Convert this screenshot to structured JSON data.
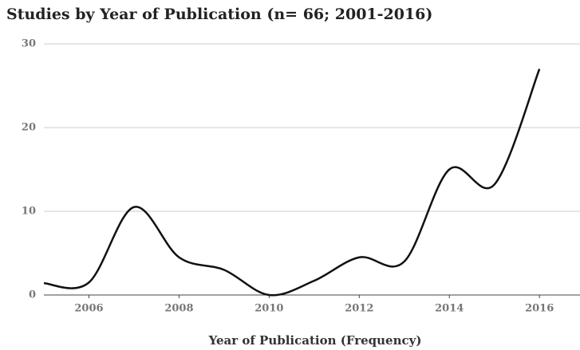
{
  "chart_data": {
    "type": "line",
    "title": "Studies by Year of Publication (n= 66; 2001-2016)",
    "x_label": "Year of Publication (Frequency)",
    "x": [
      2005,
      2006,
      2007,
      2008,
      2009,
      2010,
      2011,
      2012,
      2013,
      2014,
      2015,
      2016
    ],
    "series": [
      {
        "name": "Studies",
        "color": "#111111",
        "values": [
          1.4,
          1.5,
          10.5,
          4.5,
          3,
          0,
          1.7,
          4.5,
          4,
          15,
          13.2,
          27
        ]
      }
    ],
    "xlim": [
      2005,
      2016.9
    ],
    "xticks": [
      2006,
      2008,
      2010,
      2012,
      2014,
      2016
    ],
    "ylim": [
      0,
      30
    ],
    "yticks": [
      0,
      10,
      20,
      30
    ],
    "grid": true,
    "smooth": true
  }
}
